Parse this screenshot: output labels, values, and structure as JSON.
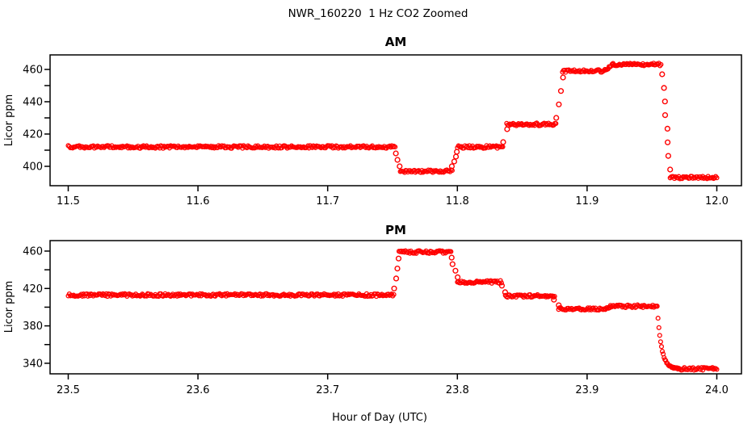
{
  "figure_title": "NWR_160220  1 Hz CO2 Zoomed",
  "xlabel": "Hour of Day (UTC)",
  "colors": {
    "data": "#FF0000",
    "axis": "#000000",
    "background": "#FFFFFF"
  },
  "chart_data": [
    {
      "name": "am",
      "type": "scatter",
      "marker": "open-circle",
      "color": "#FF0000",
      "title": "AM",
      "ylabel": "Licor ppm",
      "xlim": [
        11.486,
        12.019
      ],
      "ylim": [
        388,
        469
      ],
      "grid": false,
      "xticks": [
        {
          "v": 11.5,
          "label": "11.5"
        },
        {
          "v": 11.6,
          "label": "11.6"
        },
        {
          "v": 11.7,
          "label": "11.7"
        },
        {
          "v": 11.8,
          "label": "11.8"
        },
        {
          "v": 11.9,
          "label": "11.9"
        },
        {
          "v": 12.0,
          "label": "12.0"
        }
      ],
      "yticks": [
        {
          "v": 400,
          "label": "400"
        },
        {
          "v": 420,
          "label": "420"
        },
        {
          "v": 440,
          "label": "440"
        },
        {
          "v": 460,
          "label": "460"
        }
      ],
      "yticks_minor": [
        410,
        430,
        450
      ],
      "segments": [
        {
          "kind": "flat",
          "x0": 11.5,
          "x1": 11.752,
          "y": 412
        },
        {
          "kind": "ramp",
          "x0": 11.752,
          "x1": 11.756,
          "y0": 408,
          "y1": 400,
          "n": 3
        },
        {
          "kind": "flat",
          "x0": 11.756,
          "x1": 11.796,
          "y": 397
        },
        {
          "kind": "ramp",
          "x0": 11.796,
          "x1": 11.8,
          "y0": 400,
          "y1": 409,
          "n": 4
        },
        {
          "kind": "flat",
          "x0": 11.8,
          "x1": 11.835,
          "y": 412
        },
        {
          "kind": "ramp",
          "x0": 11.835,
          "x1": 11.838,
          "y0": 415,
          "y1": 423,
          "n": 2
        },
        {
          "kind": "flat",
          "x0": 11.838,
          "x1": 11.876,
          "y": 426
        },
        {
          "kind": "ramp",
          "x0": 11.876,
          "x1": 11.881,
          "y0": 430,
          "y1": 455,
          "n": 4
        },
        {
          "kind": "flat",
          "x0": 11.881,
          "x1": 11.913,
          "y": 459
        },
        {
          "kind": "slope",
          "x0": 11.913,
          "x1": 11.92,
          "y0": 459,
          "y1": 463
        },
        {
          "kind": "flat",
          "x0": 11.92,
          "x1": 11.957,
          "y": 463
        },
        {
          "kind": "ramp",
          "x0": 11.958,
          "x1": 11.964,
          "y0": 457,
          "y1": 398,
          "n": 8
        },
        {
          "kind": "flat",
          "x0": 11.964,
          "x1": 12.0,
          "y": 393
        }
      ]
    },
    {
      "name": "pm",
      "type": "scatter",
      "marker": "open-circle",
      "color": "#FF0000",
      "title": "PM",
      "ylabel": "Licor ppm",
      "xlim": [
        23.486,
        24.019
      ],
      "ylim": [
        328.7,
        471.2
      ],
      "grid": false,
      "xticks": [
        {
          "v": 23.5,
          "label": "23.5"
        },
        {
          "v": 23.6,
          "label": "23.6"
        },
        {
          "v": 23.7,
          "label": "23.7"
        },
        {
          "v": 23.8,
          "label": "23.8"
        },
        {
          "v": 23.9,
          "label": "23.9"
        },
        {
          "v": 24.0,
          "label": "24.0"
        }
      ],
      "yticks": [
        {
          "v": 340,
          "label": "340"
        },
        {
          "v": 380,
          "label": "380"
        },
        {
          "v": 420,
          "label": "420"
        },
        {
          "v": 460,
          "label": "460"
        }
      ],
      "yticks_minor": [
        360,
        400,
        440
      ],
      "segments": [
        {
          "kind": "flat",
          "x0": 23.5,
          "x1": 23.751,
          "y": 413
        },
        {
          "kind": "ramp",
          "x0": 23.751,
          "x1": 23.755,
          "y0": 420,
          "y1": 452,
          "n": 4
        },
        {
          "kind": "flat",
          "x0": 23.755,
          "x1": 23.795,
          "y": 459
        },
        {
          "kind": "ramp",
          "x0": 23.795,
          "x1": 23.8,
          "y0": 453,
          "y1": 432,
          "n": 4
        },
        {
          "kind": "flat",
          "x0": 23.8,
          "x1": 23.834,
          "y": 427
        },
        {
          "kind": "ramp",
          "x0": 23.834,
          "x1": 23.837,
          "y0": 423,
          "y1": 416,
          "n": 2
        },
        {
          "kind": "flat",
          "x0": 23.837,
          "x1": 23.875,
          "y": 412
        },
        {
          "kind": "ramp",
          "x0": 23.875,
          "x1": 23.878,
          "y0": 408,
          "y1": 402,
          "n": 2
        },
        {
          "kind": "flat",
          "x0": 23.878,
          "x1": 23.914,
          "y": 398
        },
        {
          "kind": "slope",
          "x0": 23.914,
          "x1": 23.918,
          "y0": 398,
          "y1": 401
        },
        {
          "kind": "flat",
          "x0": 23.918,
          "x1": 23.954,
          "y": 401
        },
        {
          "kind": "decay",
          "x0": 23.954,
          "x1": 23.97,
          "y0": 401,
          "y1": 334,
          "k": 5
        },
        {
          "kind": "flat",
          "x0": 23.97,
          "x1": 24.0,
          "y": 334
        }
      ]
    }
  ]
}
